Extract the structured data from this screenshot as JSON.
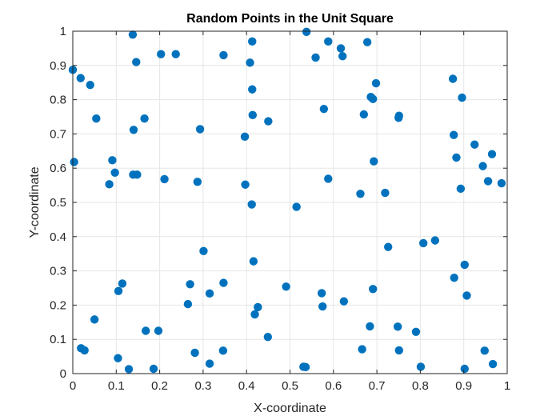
{
  "chart_data": {
    "type": "scatter",
    "title": "Random Points in the Unit Square",
    "xlabel": "X-coordinate",
    "ylabel": "Y-coordinate",
    "xlim": [
      0,
      1
    ],
    "ylim": [
      0,
      1
    ],
    "xticks": [
      0,
      0.1,
      0.2,
      0.3,
      0.4,
      0.5,
      0.6,
      0.7,
      0.8,
      0.9,
      1
    ],
    "xtick_labels": [
      "0",
      "0.1",
      "0.2",
      "0.3",
      "0.4",
      "0.5",
      "0.6",
      "0.7",
      "0.8",
      "0.9",
      "1"
    ],
    "yticks": [
      0,
      0.1,
      0.2,
      0.3,
      0.4,
      0.5,
      0.6,
      0.7,
      0.8,
      0.9,
      1
    ],
    "ytick_labels": [
      "0",
      "0.1",
      "0.2",
      "0.3",
      "0.4",
      "0.5",
      "0.6",
      "0.7",
      "0.8",
      "0.9",
      "1"
    ],
    "grid": true,
    "marker_color": "#0072BD",
    "grid_color": "#e6e6e6",
    "axis_color": "#262626",
    "points": [
      {
        "x": 0.0,
        "y": 0.887
      },
      {
        "x": 0.018,
        "y": 0.863
      },
      {
        "x": 0.04,
        "y": 0.843
      },
      {
        "x": 0.054,
        "y": 0.745
      },
      {
        "x": 0.003,
        "y": 0.618
      },
      {
        "x": 0.138,
        "y": 0.99
      },
      {
        "x": 0.146,
        "y": 0.91
      },
      {
        "x": 0.203,
        "y": 0.933
      },
      {
        "x": 0.237,
        "y": 0.933
      },
      {
        "x": 0.347,
        "y": 0.93
      },
      {
        "x": 0.413,
        "y": 0.97
      },
      {
        "x": 0.408,
        "y": 0.908
      },
      {
        "x": 0.538,
        "y": 0.998
      },
      {
        "x": 0.559,
        "y": 0.923
      },
      {
        "x": 0.588,
        "y": 0.97
      },
      {
        "x": 0.617,
        "y": 0.95
      },
      {
        "x": 0.621,
        "y": 0.927
      },
      {
        "x": 0.678,
        "y": 0.968
      },
      {
        "x": 0.698,
        "y": 0.848
      },
      {
        "x": 0.413,
        "y": 0.83
      },
      {
        "x": 0.414,
        "y": 0.755
      },
      {
        "x": 0.45,
        "y": 0.737
      },
      {
        "x": 0.578,
        "y": 0.773
      },
      {
        "x": 0.686,
        "y": 0.808
      },
      {
        "x": 0.691,
        "y": 0.802
      },
      {
        "x": 0.67,
        "y": 0.757
      },
      {
        "x": 0.751,
        "y": 0.753
      },
      {
        "x": 0.75,
        "y": 0.747
      },
      {
        "x": 0.875,
        "y": 0.861
      },
      {
        "x": 0.896,
        "y": 0.806
      },
      {
        "x": 0.165,
        "y": 0.745
      },
      {
        "x": 0.14,
        "y": 0.712
      },
      {
        "x": 0.293,
        "y": 0.714
      },
      {
        "x": 0.396,
        "y": 0.692
      },
      {
        "x": 0.877,
        "y": 0.697
      },
      {
        "x": 0.925,
        "y": 0.669
      },
      {
        "x": 0.965,
        "y": 0.641
      },
      {
        "x": 0.883,
        "y": 0.631
      },
      {
        "x": 0.944,
        "y": 0.606
      },
      {
        "x": 0.091,
        "y": 0.623
      },
      {
        "x": 0.097,
        "y": 0.587
      },
      {
        "x": 0.139,
        "y": 0.581
      },
      {
        "x": 0.148,
        "y": 0.581
      },
      {
        "x": 0.084,
        "y": 0.553
      },
      {
        "x": 0.211,
        "y": 0.568
      },
      {
        "x": 0.287,
        "y": 0.56
      },
      {
        "x": 0.397,
        "y": 0.552
      },
      {
        "x": 0.412,
        "y": 0.494
      },
      {
        "x": 0.515,
        "y": 0.487
      },
      {
        "x": 0.588,
        "y": 0.569
      },
      {
        "x": 0.693,
        "y": 0.62
      },
      {
        "x": 0.662,
        "y": 0.525
      },
      {
        "x": 0.719,
        "y": 0.528
      },
      {
        "x": 0.893,
        "y": 0.54
      },
      {
        "x": 0.956,
        "y": 0.562
      },
      {
        "x": 0.987,
        "y": 0.556
      },
      {
        "x": 0.301,
        "y": 0.358
      },
      {
        "x": 0.416,
        "y": 0.328
      },
      {
        "x": 0.726,
        "y": 0.37
      },
      {
        "x": 0.807,
        "y": 0.381
      },
      {
        "x": 0.834,
        "y": 0.389
      },
      {
        "x": 0.902,
        "y": 0.318
      },
      {
        "x": 0.878,
        "y": 0.28
      },
      {
        "x": 0.114,
        "y": 0.263
      },
      {
        "x": 0.105,
        "y": 0.241
      },
      {
        "x": 0.27,
        "y": 0.261
      },
      {
        "x": 0.347,
        "y": 0.265
      },
      {
        "x": 0.315,
        "y": 0.234
      },
      {
        "x": 0.265,
        "y": 0.203
      },
      {
        "x": 0.491,
        "y": 0.254
      },
      {
        "x": 0.573,
        "y": 0.235
      },
      {
        "x": 0.691,
        "y": 0.247
      },
      {
        "x": 0.907,
        "y": 0.228
      },
      {
        "x": 0.426,
        "y": 0.194
      },
      {
        "x": 0.419,
        "y": 0.173
      },
      {
        "x": 0.575,
        "y": 0.196
      },
      {
        "x": 0.624,
        "y": 0.211
      },
      {
        "x": 0.05,
        "y": 0.158
      },
      {
        "x": 0.168,
        "y": 0.125
      },
      {
        "x": 0.197,
        "y": 0.125
      },
      {
        "x": 0.449,
        "y": 0.107
      },
      {
        "x": 0.684,
        "y": 0.138
      },
      {
        "x": 0.748,
        "y": 0.137
      },
      {
        "x": 0.79,
        "y": 0.122
      },
      {
        "x": 0.019,
        "y": 0.074
      },
      {
        "x": 0.027,
        "y": 0.068
      },
      {
        "x": 0.104,
        "y": 0.045
      },
      {
        "x": 0.129,
        "y": 0.013
      },
      {
        "x": 0.186,
        "y": 0.014
      },
      {
        "x": 0.281,
        "y": 0.061
      },
      {
        "x": 0.346,
        "y": 0.067
      },
      {
        "x": 0.315,
        "y": 0.029
      },
      {
        "x": 0.531,
        "y": 0.02
      },
      {
        "x": 0.536,
        "y": 0.019
      },
      {
        "x": 0.666,
        "y": 0.071
      },
      {
        "x": 0.751,
        "y": 0.068
      },
      {
        "x": 0.801,
        "y": 0.02
      },
      {
        "x": 0.902,
        "y": 0.014
      },
      {
        "x": 0.948,
        "y": 0.067
      },
      {
        "x": 0.967,
        "y": 0.028
      }
    ]
  }
}
